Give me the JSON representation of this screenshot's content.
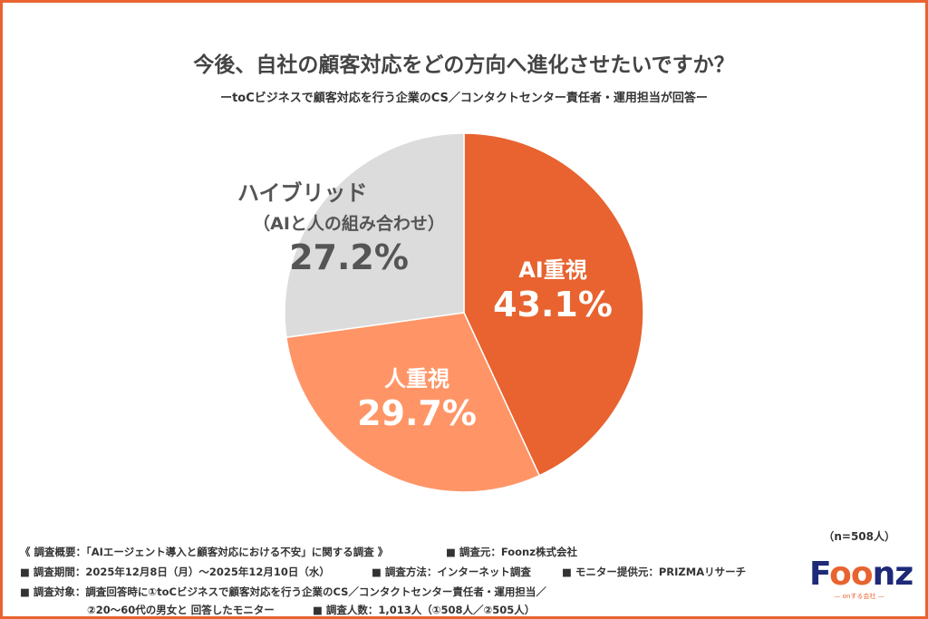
{
  "chart_data": {
    "type": "pie",
    "title": "今後、自社の顧客対応をどの方向へ進化させたいですか？",
    "subtitle": "ーtoCビジネスで顧客対応を行う企業のCS／コンタクトセンター責任者・運用担当が回答ー",
    "slices": [
      {
        "label": "AI重視",
        "value": 43.1,
        "display": "43.1%",
        "color": "#E8632F"
      },
      {
        "label": "人重視",
        "value": 29.7,
        "display": "29.7%",
        "color": "#FF9566"
      },
      {
        "label": "ハイブリッド",
        "sublabel": "（AIと人の組み合わせ）",
        "value": 27.2,
        "display": "27.2%",
        "color": "#DCDCDC"
      }
    ],
    "start": "top",
    "direction": "clockwise"
  },
  "sample": "（n=508人）",
  "footer": {
    "line1a": "《 調査概要：「AIエージェント導入と顧客対応における不安」に関する調査 》",
    "line1b": "■ 調査元：Foonz株式会社",
    "line2a": "■ 調査期間：2025年12月8日（月）～2025年12月10日（水）",
    "line2b": "■ 調査方法：インターネット調査",
    "line2c": "■ モニター提供元：PRIZMAリサーチ",
    "line3": "■ 調査対象：調査回答時に①toCビジネスで顧客対応を行う企業のCS／コンタクトセンター責任者・運用担当／",
    "line4a": "②20～60代の男女と 回答したモニター",
    "line4b": "■ 調査人数：1,013人（①508人／②505人）"
  },
  "logo": {
    "text": "Foonz",
    "tagline": "onする会社"
  }
}
